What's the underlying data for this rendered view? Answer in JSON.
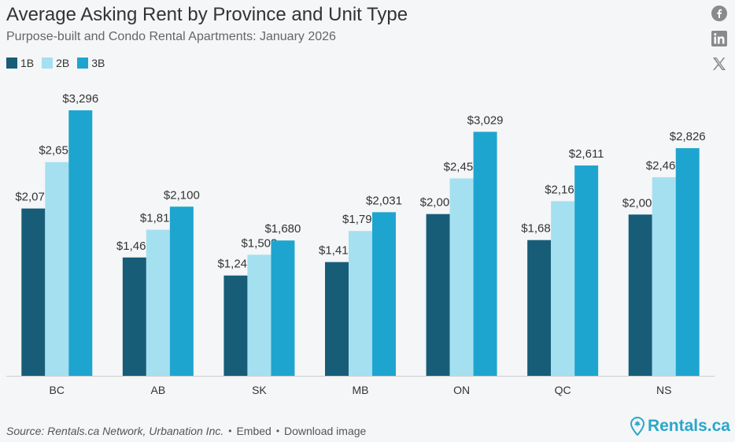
{
  "header": {
    "title": "Average Asking Rent by Province and Unit Type",
    "subtitle": "Purpose-built and Condo Rental Apartments: January 2026"
  },
  "social": {
    "facebook_icon": "facebook-icon",
    "linkedin_icon": "linkedin-icon",
    "x_icon": "x-icon"
  },
  "footer": {
    "source": "Source: Rentals.ca Network, Urbanation Inc.",
    "embed_label": "Embed",
    "download_label": "Download image",
    "brand": "Rentals.ca"
  },
  "colors": {
    "1B": "#175d78",
    "2B": "#a5e0f0",
    "3B": "#1ea5cf",
    "text": "#333333",
    "axis": "#cccccc",
    "brand": "#2aa7c9"
  },
  "chart_data": {
    "type": "bar",
    "categories": [
      "BC",
      "AB",
      "SK",
      "MB",
      "ON",
      "QC",
      "NS"
    ],
    "series": [
      {
        "name": "1B",
        "values": [
          2077,
          1469,
          1245,
          1412,
          2008,
          1685,
          2002
        ],
        "labels": [
          "$2,077",
          "$1,469",
          "$1,245",
          "$1,412",
          "$2,008",
          "$1,685",
          "$2,002"
        ]
      },
      {
        "name": "2B",
        "values": [
          2653,
          1814,
          1503,
          1798,
          2451,
          2168,
          2465
        ],
        "labels": [
          "$2,653",
          "$1,814",
          "$1,503",
          "$1,798",
          "$2,451",
          "$2,168",
          "$2,465"
        ]
      },
      {
        "name": "3B",
        "values": [
          3296,
          2100,
          1680,
          2031,
          3029,
          2611,
          2826
        ],
        "labels": [
          "$3,296",
          "$2,100",
          "$1,680",
          "$2,031",
          "$3,029",
          "$2,611",
          "$2,826"
        ]
      }
    ],
    "title": "Average Asking Rent by Province and Unit Type",
    "subtitle": "Purpose-built and Condo Rental Apartments: January 2026",
    "ylim": [
      0,
      3296
    ],
    "grid": false,
    "legend_position": "top-left"
  }
}
